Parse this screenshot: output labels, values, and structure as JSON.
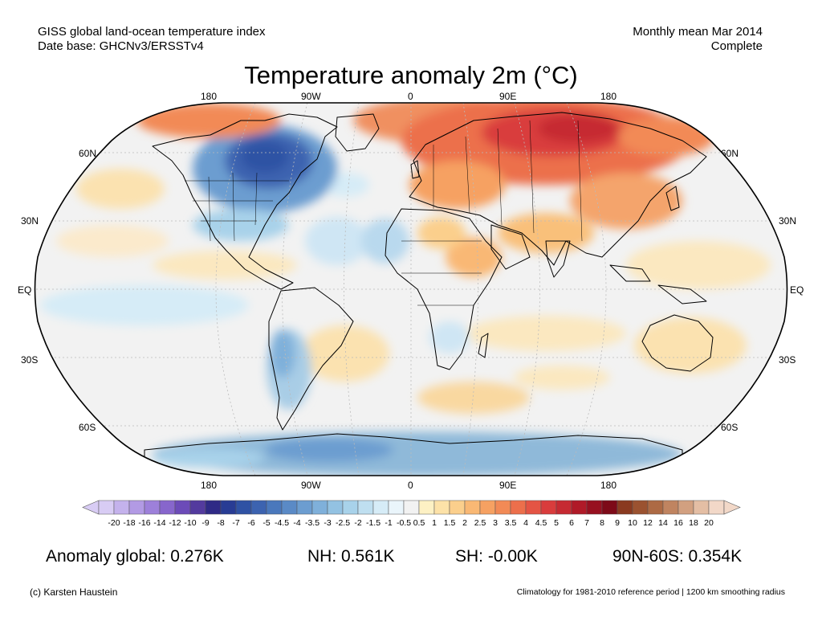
{
  "header": {
    "source_line1": "GISS global land-ocean temperature index",
    "source_line2": "Date base: GHCNv3/ERSSTv4",
    "period_line1": "Monthly mean Mar 2014",
    "period_line2": "Complete"
  },
  "title": "Temperature anomaly 2m (°C)",
  "map": {
    "projection": "Robinson",
    "lon_labels_top": [
      "180",
      "90W",
      "0",
      "90E",
      "180"
    ],
    "lon_labels_bottom": [
      "180",
      "90W",
      "0",
      "90E",
      "180"
    ],
    "lat_labels_left": [
      "60N",
      "30N",
      "EQ",
      "30S",
      "60S"
    ],
    "lat_labels_right": [
      "60N",
      "30N",
      "EQ",
      "30S",
      "60S"
    ],
    "ocean_color": "#f2f2f2",
    "anomaly_regions": [
      {
        "region": "arctic-eurasia",
        "level": "warm-strong",
        "color": "#e8534a"
      },
      {
        "region": "siberia-core",
        "level": "warm-max",
        "color": "#c8262b"
      },
      {
        "region": "europe",
        "level": "warm",
        "color": "#f09060"
      },
      {
        "region": "east-asia",
        "level": "warm",
        "color": "#f4a46c"
      },
      {
        "region": "north-america-east",
        "level": "cold-strong",
        "color": "#3c63b0"
      },
      {
        "region": "canada-east-core",
        "level": "cold-max",
        "color": "#2c4c9e"
      },
      {
        "region": "antarctica",
        "level": "cold",
        "color": "#8fb9d9"
      },
      {
        "region": "south-america-south",
        "level": "cold-weak",
        "color": "#a9cde6"
      },
      {
        "region": "pacific-tropics",
        "level": "cold-weak",
        "color": "#d6ecf7"
      },
      {
        "region": "subtropical-oceans",
        "level": "warm-weak",
        "color": "#fbe2b0"
      }
    ]
  },
  "colorbar": {
    "labels": [
      "-20",
      "-18",
      "-16",
      "-14",
      "-12",
      "-10",
      "-9",
      "-8",
      "-7",
      "-6",
      "-5",
      "-4.5",
      "-4",
      "-3.5",
      "-3",
      "-2.5",
      "-2",
      "-1.5",
      "-1",
      "-0.5",
      "0.5",
      "1",
      "1.5",
      "2",
      "2.5",
      "3",
      "3.5",
      "4",
      "4.5",
      "5",
      "6",
      "7",
      "8",
      "9",
      "10",
      "12",
      "14",
      "16",
      "18",
      "20"
    ],
    "colors": [
      "#d8ccf4",
      "#c4b2ec",
      "#b29ae4",
      "#9d80da",
      "#8766cc",
      "#6c4bb8",
      "#533a9e",
      "#2f2a86",
      "#283c94",
      "#2f52a4",
      "#3c63b0",
      "#4a78bc",
      "#5a8ac6",
      "#6c9dd0",
      "#7fb0da",
      "#93c2e2",
      "#a8d2ea",
      "#bfdff0",
      "#d6ecf7",
      "#eaf5fb",
      "#f2f2f2",
      "#fdf1c4",
      "#fde2a8",
      "#fbcf8c",
      "#f9b874",
      "#f6a162",
      "#f28a56",
      "#ec6f4b",
      "#e45444",
      "#d93c3c",
      "#c62a32",
      "#b01a28",
      "#971020",
      "#7d0a18",
      "#8a3a20",
      "#9b5230",
      "#ad6a44",
      "#c08460",
      "#d2a080",
      "#e4bea4",
      "#f2d8c8"
    ]
  },
  "stats": {
    "global": "Anomaly global: 0.276K",
    "nh": "NH: 0.561K",
    "sh": "SH: -0.00K",
    "polar": "90N-60S: 0.354K"
  },
  "footer": {
    "credit": "(c) Karsten Haustein",
    "note": "Climatology for 1981-2010 reference period | 1200 km smoothing radius"
  }
}
